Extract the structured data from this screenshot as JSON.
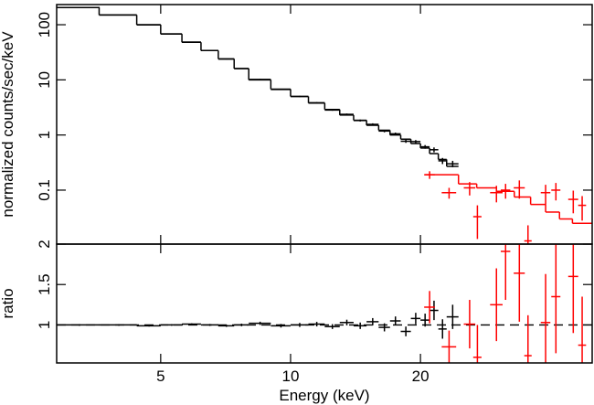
{
  "chart_data": [
    {
      "type": "spectrum",
      "ylabel": "normalized counts/sec/keV",
      "xlog": true,
      "ylog": true,
      "xlim": [
        2.87,
        50
      ],
      "xticks": [
        5,
        10,
        20
      ],
      "ylim": [
        0.0105,
        232
      ],
      "yticks": [
        100,
        10,
        1,
        0.1
      ],
      "series": [
        {
          "color": "#000000",
          "model_edges": [
            2.87,
            3.6,
            4.4,
            5.0,
            5.6,
            6.2,
            6.8,
            7.4,
            8,
            9,
            10,
            11,
            12,
            13,
            14,
            15,
            16,
            17,
            18,
            19,
            20,
            21,
            22,
            23,
            24.5
          ],
          "model_values": [
            205,
            150,
            100,
            68,
            48,
            34,
            24,
            16,
            10,
            6.8,
            5,
            3.8,
            2.9,
            2.3,
            1.85,
            1.5,
            1.22,
            1.0,
            0.84,
            0.7,
            0.58,
            0.46,
            0.36,
            0.27
          ],
          "x": [
            3.24,
            4.0,
            4.7,
            5.3,
            5.9,
            6.5,
            7.1,
            7.7,
            8.5,
            9.5,
            10.5,
            11.5,
            12.5,
            13.5,
            14.5,
            15.5,
            16.5,
            17.5,
            18.5,
            19.5,
            20.5,
            21.5,
            22.5,
            23.75
          ],
          "xerr": [
            0.37,
            0.4,
            0.3,
            0.3,
            0.3,
            0.3,
            0.3,
            0.3,
            0.5,
            0.5,
            0.5,
            0.5,
            0.5,
            0.5,
            0.5,
            0.5,
            0.5,
            0.5,
            0.5,
            0.5,
            0.5,
            0.5,
            0.5,
            0.75
          ],
          "values": [
            205,
            150,
            99,
            68,
            48.5,
            34,
            23.8,
            16,
            10.2,
            6.7,
            5,
            3.84,
            2.84,
            2.37,
            1.83,
            1.56,
            1.18,
            1.05,
            0.77,
            0.76,
            0.61,
            0.54,
            0.34,
            0.3
          ],
          "yerr": [
            2.05,
            1.5,
            1.0,
            0.68,
            0.48,
            0.41,
            0.34,
            0.26,
            0.2,
            0.15,
            0.125,
            0.106,
            0.087,
            0.08,
            0.074,
            0.068,
            0.061,
            0.055,
            0.05,
            0.049,
            0.046,
            0.055,
            0.043,
            0.04
          ]
        },
        {
          "color": "#ff0000",
          "model_edges": [
            20.5,
            24.5,
            27,
            30,
            33,
            36,
            39,
            42,
            45,
            50
          ],
          "model_values": [
            0.19,
            0.13,
            0.11,
            0.095,
            0.075,
            0.055,
            0.04,
            0.03,
            0.025
          ],
          "x": [
            21,
            23.3,
            26,
            27.1,
            30,
            31.5,
            33.9,
            35.5,
            39,
            41.2,
            45.2,
            47.4
          ],
          "xerr": [
            0.6,
            0.9,
            0.8,
            0.6,
            1.0,
            0.8,
            1.0,
            0.7,
            1.0,
            1.0,
            1.2,
            1.0
          ],
          "values": [
            0.19,
            0.09,
            0.11,
            0.033,
            0.09,
            0.1,
            0.11,
            0.012,
            0.09,
            0.1,
            0.068,
            0.053
          ],
          "yerr": [
            0.03,
            0.02,
            0.03,
            0.02,
            0.03,
            0.03,
            0.04,
            0.011,
            0.035,
            0.035,
            0.03,
            0.025
          ]
        }
      ]
    },
    {
      "type": "ratio",
      "ylabel": "ratio",
      "xlabel": "Energy (keV)",
      "xlog": true,
      "xlim": [
        2.87,
        50
      ],
      "xticks": [
        5,
        10,
        20
      ],
      "ylim": [
        0.53,
        2
      ],
      "yticks": [
        1,
        1.5,
        2
      ],
      "reference_line": 1,
      "series": [
        {
          "color": "#000000",
          "x": [
            3.24,
            4.0,
            4.7,
            5.3,
            5.9,
            6.5,
            7.1,
            7.7,
            8.5,
            9.5,
            10.5,
            11.5,
            12.5,
            13.5,
            14.5,
            15.5,
            16.5,
            17.5,
            18.5,
            19.5,
            20.5,
            21.5,
            22.5,
            23.75
          ],
          "xerr": [
            0.37,
            0.4,
            0.3,
            0.3,
            0.3,
            0.3,
            0.3,
            0.3,
            0.5,
            0.5,
            0.5,
            0.5,
            0.5,
            0.5,
            0.5,
            0.5,
            0.5,
            0.5,
            0.5,
            0.5,
            0.5,
            0.5,
            0.5,
            0.75
          ],
          "values": [
            1.0,
            1.0,
            0.99,
            1.0,
            1.01,
            1.0,
            0.99,
            1.0,
            1.02,
            0.99,
            1.0,
            1.01,
            0.98,
            1.03,
            0.99,
            1.04,
            0.97,
            1.05,
            0.92,
            1.08,
            1.06,
            1.18,
            0.95,
            1.1
          ],
          "yerr": [
            0.01,
            0.01,
            0.01,
            0.01,
            0.01,
            0.012,
            0.014,
            0.016,
            0.02,
            0.022,
            0.025,
            0.028,
            0.03,
            0.035,
            0.04,
            0.045,
            0.05,
            0.055,
            0.06,
            0.07,
            0.08,
            0.12,
            0.12,
            0.15
          ]
        },
        {
          "color": "#ff0000",
          "x": [
            21,
            23.3,
            26,
            27.1,
            30,
            31.5,
            33.9,
            35.5,
            39,
            41.2,
            45.2,
            47.4
          ],
          "xerr": [
            0.6,
            0.9,
            0.8,
            0.6,
            1.0,
            0.8,
            1.0,
            0.7,
            1.0,
            1.0,
            1.2,
            1.0
          ],
          "values": [
            1.22,
            0.73,
            1.01,
            0.6,
            1.25,
            1.91,
            1.64,
            0.62,
            1.03,
            1.35,
            1.6,
            0.75
          ],
          "yerr": [
            0.2,
            0.2,
            0.3,
            0.4,
            0.45,
            0.6,
            0.6,
            0.5,
            0.6,
            0.7,
            0.7,
            0.6
          ]
        }
      ]
    }
  ]
}
